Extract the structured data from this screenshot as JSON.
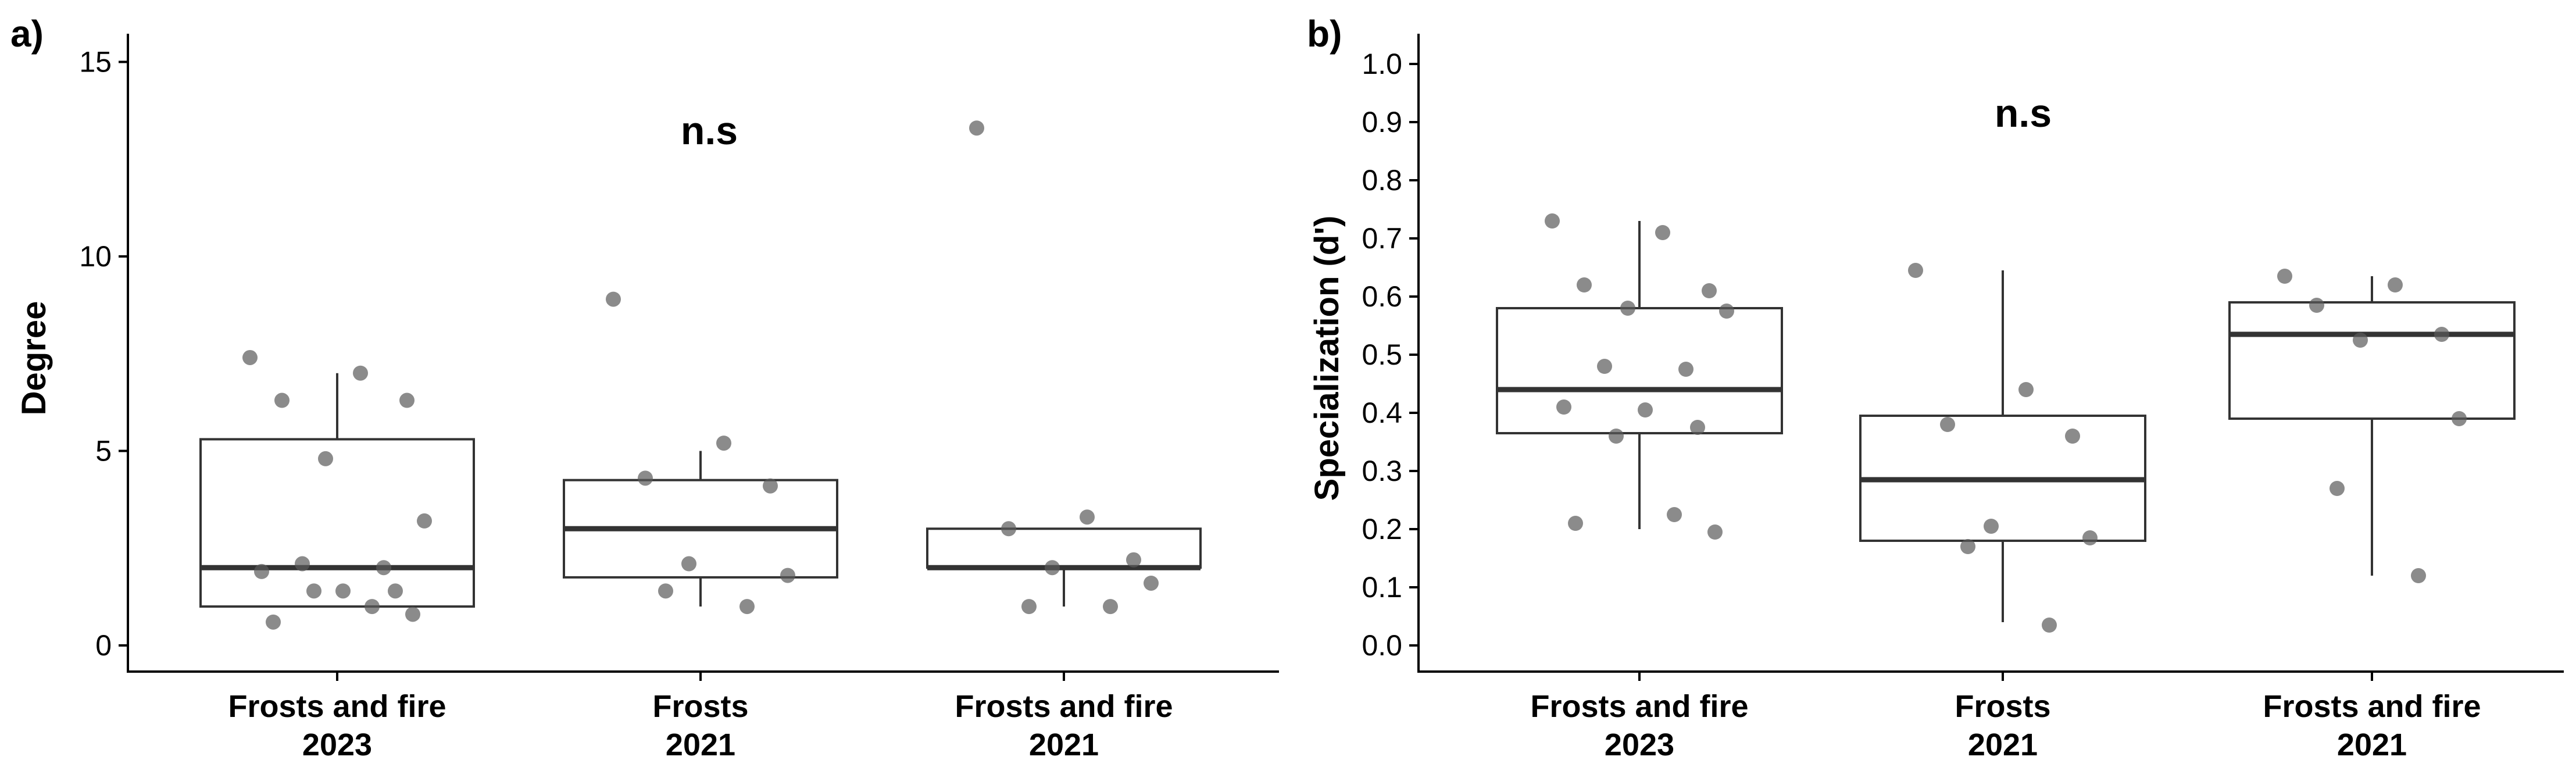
{
  "chart_data": [
    {
      "type": "box",
      "panel_label": "a)",
      "ylabel": "Degree",
      "annotation": "n.s",
      "ylim": [
        0,
        15.5
      ],
      "yticks": [
        0,
        5,
        10,
        15
      ],
      "categories": [
        [
          "Frosts and fire",
          "2023"
        ],
        [
          "Frosts",
          "2021"
        ],
        [
          "Frosts and fire",
          "2021"
        ]
      ],
      "boxes": [
        {
          "whisker_low": 1,
          "q1": 1,
          "median": 2,
          "q3": 5.3,
          "whisker_high": 7
        },
        {
          "whisker_low": 1,
          "q1": 1.75,
          "median": 3,
          "q3": 4.25,
          "whisker_high": 5
        },
        {
          "whisker_low": 1,
          "q1": 2,
          "median": 2,
          "q3": 3,
          "whisker_high": 3
        }
      ],
      "points": [
        [
          7.4,
          7.0,
          6.3,
          6.3,
          4.8,
          3.2,
          2.1,
          2.0,
          1.9,
          1.4,
          1.4,
          1.4,
          1.0,
          0.6,
          0.8
        ],
        [
          8.9,
          5.2,
          4.3,
          4.1,
          2.1,
          1.8,
          1.4,
          1.0
        ],
        [
          13.3,
          3.3,
          3.0,
          2.2,
          2.0,
          1.6,
          1.0,
          1.0
        ]
      ],
      "grid": false,
      "legend": "none"
    },
    {
      "type": "box",
      "panel_label": "b)",
      "ylabel": "Specialization (d')",
      "annotation": "n.s",
      "ylim": [
        0,
        1.02
      ],
      "yticks": [
        0.0,
        0.1,
        0.2,
        0.3,
        0.4,
        0.5,
        0.6,
        0.7,
        0.8,
        0.9,
        1.0
      ],
      "categories": [
        [
          "Frosts and fire",
          "2023"
        ],
        [
          "Frosts",
          "2021"
        ],
        [
          "Frosts and fire",
          "2021"
        ]
      ],
      "boxes": [
        {
          "whisker_low": 0.2,
          "q1": 0.365,
          "median": 0.44,
          "q3": 0.58,
          "whisker_high": 0.73
        },
        {
          "whisker_low": 0.04,
          "q1": 0.18,
          "median": 0.285,
          "q3": 0.395,
          "whisker_high": 0.645
        },
        {
          "whisker_low": 0.12,
          "q1": 0.39,
          "median": 0.535,
          "q3": 0.59,
          "whisker_high": 0.635
        }
      ],
      "points": [
        [
          0.73,
          0.71,
          0.62,
          0.61,
          0.58,
          0.575,
          0.48,
          0.475,
          0.41,
          0.405,
          0.375,
          0.36,
          0.225,
          0.21,
          0.195
        ],
        [
          0.645,
          0.44,
          0.38,
          0.36,
          0.205,
          0.185,
          0.17,
          0.035
        ],
        [
          0.635,
          0.62,
          0.585,
          0.535,
          0.525,
          0.39,
          0.27,
          0.12
        ]
      ],
      "grid": false,
      "legend": "none"
    }
  ]
}
